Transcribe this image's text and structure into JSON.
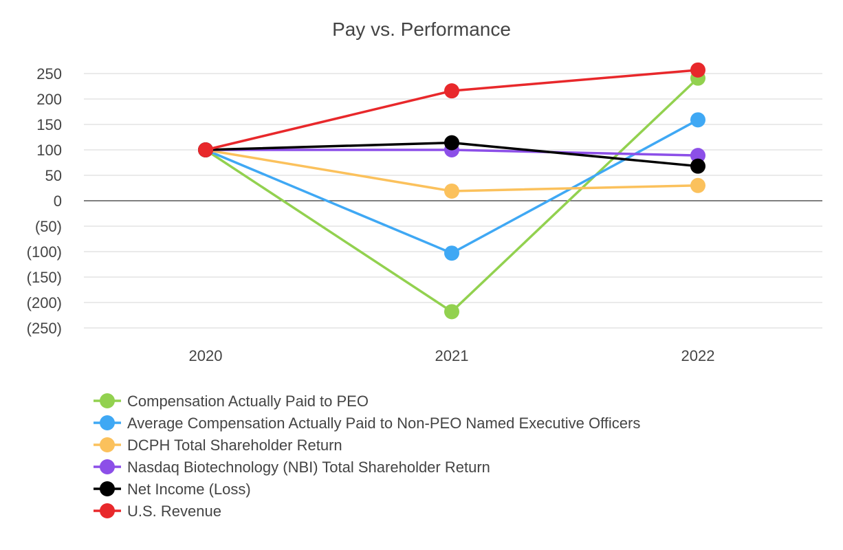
{
  "chart_data": {
    "type": "line",
    "title": "Pay vs. Performance",
    "xlabel": "",
    "ylabel": "",
    "categories": [
      "2020",
      "2021",
      "2022"
    ],
    "ylim": [
      -250,
      250
    ],
    "yticks": [
      250,
      200,
      150,
      100,
      50,
      0,
      -50,
      -100,
      -150,
      -200,
      -250
    ],
    "ytick_labels": [
      "250",
      "200",
      "150",
      "100",
      "50",
      "0",
      "(50)",
      "(100)",
      "(150)",
      "(200)",
      "(250)"
    ],
    "grid": true,
    "legend_position": "bottom",
    "series": [
      {
        "name": "Compensation Actually Paid to PEO",
        "color": "#92d14f",
        "values": [
          100,
          -218,
          241
        ]
      },
      {
        "name": "Average Compensation Actually Paid to Non-PEO Named Executive Officers",
        "color": "#3fa8f4",
        "values": [
          100,
          -103,
          159
        ]
      },
      {
        "name": "DCPH Total Shareholder Return",
        "color": "#fbc15c",
        "values": [
          100,
          19,
          30
        ]
      },
      {
        "name": "Nasdaq Biotechnology (NBI) Total Shareholder Return",
        "color": "#8c4fe8",
        "values": [
          100,
          100,
          89
        ]
      },
      {
        "name": "Net Income (Loss)",
        "color": "#000000",
        "values": [
          100,
          114,
          68
        ]
      },
      {
        "name": "U.S. Revenue",
        "color": "#e8282b",
        "values": [
          100,
          216,
          257
        ]
      }
    ]
  }
}
